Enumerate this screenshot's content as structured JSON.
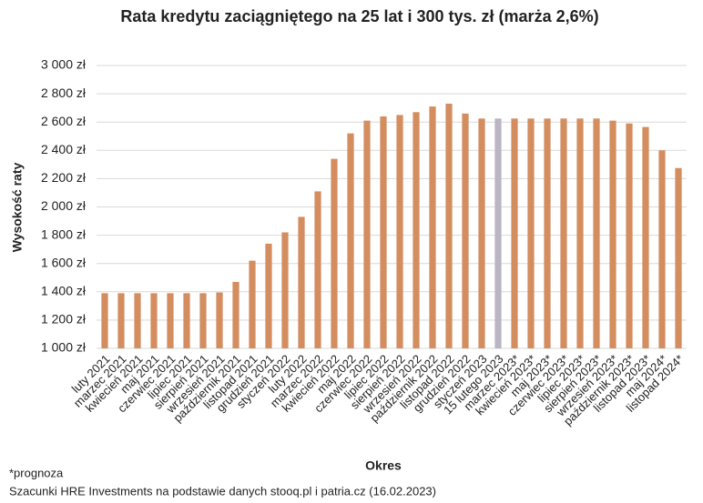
{
  "chart_data": {
    "type": "bar",
    "title": "Rata kredytu zaciągniętego na 25 lat i 300 tys. zł (marża 2,6%)",
    "xlabel": "Okres",
    "ylabel": "Wysokość raty",
    "footnotes": [
      "*prognoza",
      "Szacunki HRE Investments na podstawie danych stooq.pl i patria.cz (16.02.2023)"
    ],
    "categories": [
      "luty 2021",
      "marzec 2021",
      "kwiecień 2021",
      "maj 2021",
      "czerwiec 2021",
      "lipiec 2021",
      "sierpień 2021",
      "wrzesień 2021",
      "październik 2021",
      "listopad 2021",
      "grudzień 2021",
      "styczeń 2022",
      "luty 2022",
      "marzec 2022",
      "kwiecień 2022",
      "maj 2022",
      "czerwiec 2022",
      "lipiec 2022",
      "sierpień 2022",
      "wrzesień 2022",
      "październik 2022",
      "listopad 2022",
      "grudzień 2022",
      "styczeń 2023",
      "15 lutego 2023",
      "marzec 2023*",
      "kwiecień 2023*",
      "maj 2023*",
      "czerwiec 2023*",
      "lipiec 2023*",
      "sierpień 2023*",
      "wrzesień 2023*",
      "październik 2023*",
      "listopad 2023*",
      "maj 2024*",
      "listopad 2024*"
    ],
    "values": [
      1390,
      1390,
      1390,
      1390,
      1390,
      1390,
      1390,
      1395,
      1470,
      1620,
      1740,
      1820,
      1930,
      2110,
      2340,
      2520,
      2610,
      2640,
      2650,
      2670,
      2710,
      2730,
      2660,
      2625,
      2625,
      2625,
      2625,
      2625,
      2625,
      2625,
      2625,
      2610,
      2590,
      2565,
      2400,
      2275
    ],
    "colors": [
      "#d38d5f",
      "#d38d5f",
      "#d38d5f",
      "#d38d5f",
      "#d38d5f",
      "#d38d5f",
      "#d38d5f",
      "#d38d5f",
      "#d38d5f",
      "#d38d5f",
      "#d38d5f",
      "#d38d5f",
      "#d38d5f",
      "#d38d5f",
      "#d38d5f",
      "#d38d5f",
      "#d38d5f",
      "#d38d5f",
      "#d38d5f",
      "#d38d5f",
      "#d38d5f",
      "#d38d5f",
      "#d38d5f",
      "#d38d5f",
      "#b9b5c2",
      "#d38d5f",
      "#d38d5f",
      "#d38d5f",
      "#d38d5f",
      "#d38d5f",
      "#d38d5f",
      "#d38d5f",
      "#d38d5f",
      "#d38d5f",
      "#d38d5f",
      "#d38d5f"
    ],
    "ylim": [
      1000,
      3000
    ],
    "yticks": [
      {
        "value": 1000,
        "label": "1 000 zł"
      },
      {
        "value": 1200,
        "label": "1 200 zł"
      },
      {
        "value": 1400,
        "label": "1 400 zł"
      },
      {
        "value": 1600,
        "label": "1 600 zł"
      },
      {
        "value": 1800,
        "label": "1 800 zł"
      },
      {
        "value": 2000,
        "label": "2 000 zł"
      },
      {
        "value": 2200,
        "label": "2 200 zł"
      },
      {
        "value": 2400,
        "label": "2 400 zł"
      },
      {
        "value": 2600,
        "label": "2 600 zł"
      },
      {
        "value": 2800,
        "label": "2 800 zł"
      },
      {
        "value": 3000,
        "label": "3 000 zł"
      }
    ],
    "grid": true
  }
}
